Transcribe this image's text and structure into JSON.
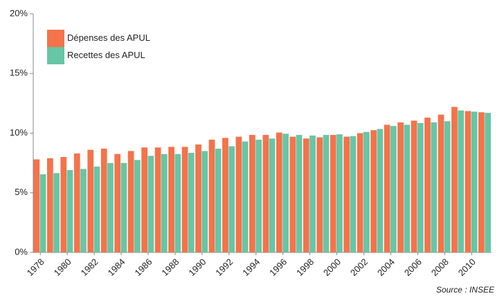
{
  "chart_data": {
    "type": "bar",
    "categories": [
      "1978",
      null,
      "1980",
      null,
      "1982",
      null,
      "1984",
      null,
      "1986",
      null,
      "1988",
      null,
      "1990",
      null,
      "1992",
      null,
      "1994",
      null,
      "1996",
      null,
      "1998",
      null,
      "2000",
      null,
      "2002",
      null,
      "2004",
      null,
      "2006",
      null,
      "2008",
      null,
      "2010",
      null
    ],
    "series": [
      {
        "name": "Dépenses des APUL",
        "color": "#f4734a",
        "values": [
          7.8,
          7.9,
          8.0,
          8.3,
          8.6,
          8.7,
          8.25,
          8.5,
          8.8,
          8.8,
          8.85,
          8.85,
          9.05,
          9.45,
          9.6,
          9.7,
          9.85,
          9.85,
          10.05,
          9.7,
          9.55,
          9.65,
          9.85,
          9.7,
          10.0,
          10.25,
          10.7,
          10.9,
          11.05,
          11.3,
          11.55,
          12.2,
          11.85,
          11.75
        ]
      },
      {
        "name": "Recettes des APUL",
        "color": "#66c6a6",
        "values": [
          6.55,
          6.65,
          6.9,
          7.0,
          7.2,
          7.5,
          7.5,
          7.75,
          8.1,
          8.25,
          8.25,
          8.35,
          8.5,
          8.7,
          8.9,
          9.3,
          9.45,
          9.55,
          9.95,
          9.85,
          9.8,
          9.85,
          9.9,
          9.75,
          10.1,
          10.35,
          10.6,
          10.7,
          10.85,
          10.9,
          11.0,
          11.9,
          11.8,
          11.7
        ]
      }
    ],
    "ylim": [
      0,
      20
    ],
    "yticks": [
      {
        "value": 0,
        "label": "0%"
      },
      {
        "value": 5,
        "label": "5%"
      },
      {
        "value": 10,
        "label": "10%"
      },
      {
        "value": 15,
        "label": "15%"
      },
      {
        "value": 20,
        "label": "20%"
      }
    ],
    "grid": false,
    "legend": "top-left",
    "source": "Source : INSEE"
  }
}
